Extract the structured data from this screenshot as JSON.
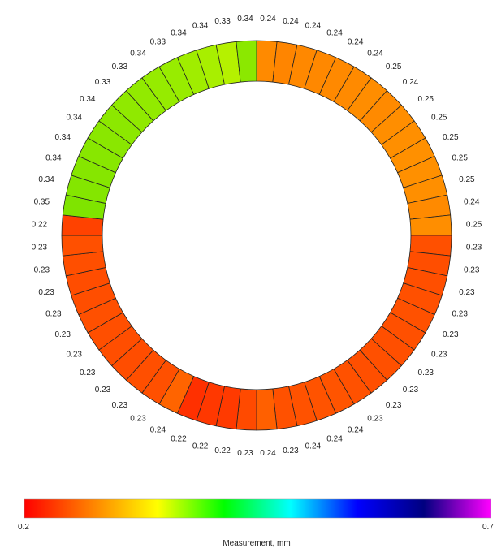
{
  "chart_data": {
    "type": "ring",
    "title": "",
    "start": "top",
    "direction": "clockwise",
    "values": [
      0.24,
      0.24,
      0.24,
      0.24,
      0.24,
      0.24,
      0.25,
      0.24,
      0.25,
      0.25,
      0.25,
      0.25,
      0.25,
      0.24,
      0.25,
      0.23,
      0.23,
      0.23,
      0.23,
      0.23,
      0.23,
      0.23,
      0.23,
      0.23,
      0.23,
      0.24,
      0.24,
      0.24,
      0.23,
      0.24,
      0.23,
      0.22,
      0.22,
      0.22,
      0.24,
      0.23,
      0.23,
      0.23,
      0.23,
      0.23,
      0.23,
      0.23,
      0.23,
      0.23,
      0.23,
      0.22,
      0.35,
      0.34,
      0.34,
      0.34,
      0.34,
      0.34,
      0.33,
      0.33,
      0.34,
      0.33,
      0.34,
      0.34,
      0.33,
      0.34
    ],
    "value_labels": [
      "0.24",
      "0.24",
      "0.24",
      "0.24",
      "0.24",
      "0.24",
      "0.25",
      "0.24",
      "0.25",
      "0.25",
      "0.25",
      "0.25",
      "0.25",
      "0.24",
      "0.25",
      "0.23",
      "0.23",
      "0.23",
      "0.23",
      "0.23",
      "0.23",
      "0.23",
      "0.23",
      "0.23",
      "0.23",
      "0.24",
      "0.24",
      "0.24",
      "0.23",
      "0.24",
      "0.23",
      "0.22",
      "0.22",
      "0.22",
      "0.24",
      "0.23",
      "0.23",
      "0.23",
      "0.23",
      "0.23",
      "0.23",
      "0.23",
      "0.23",
      "0.23",
      "0.23",
      "0.22",
      "0.35",
      "0.34",
      "0.34",
      "0.34",
      "0.34",
      "0.34",
      "0.33",
      "0.33",
      "0.34",
      "0.33",
      "0.34",
      "0.34",
      "0.33",
      "0.34"
    ],
    "segment_colors": [
      "#ff8a00",
      "#ff8500",
      "#ff8800",
      "#ff8800",
      "#ff8900",
      "#ff8a00",
      "#ff8d00",
      "#ff8a00",
      "#ff8e00",
      "#ff8f00",
      "#ff9000",
      "#ff9000",
      "#ff8f00",
      "#ff8a00",
      "#ff8e00",
      "#ff5000",
      "#ff4e00",
      "#ff4f00",
      "#ff5000",
      "#ff5100",
      "#ff5000",
      "#ff4f00",
      "#ff5000",
      "#ff4f00",
      "#ff5100",
      "#ff5400",
      "#ff5300",
      "#ff5200",
      "#ff5100",
      "#ff6000",
      "#ff4a00",
      "#ff3a00",
      "#ff3800",
      "#ff3000",
      "#ff6400",
      "#ff5000",
      "#ff4f00",
      "#ff4d00",
      "#ff4e00",
      "#ff4f00",
      "#ff5000",
      "#ff4e00",
      "#ff4d00",
      "#ff4f00",
      "#ff5000",
      "#ff4200",
      "#7fe400",
      "#84e600",
      "#86e600",
      "#88e700",
      "#8ae700",
      "#8ce800",
      "#90e900",
      "#92ea00",
      "#96eb00",
      "#98ec00",
      "#a0ed00",
      "#a8ef00",
      "#b5f100",
      "#8be800"
    ],
    "colorbar": {
      "min_label": "0.2",
      "max_label": "0.7",
      "label": "Measurement, mm",
      "stops": [
        "#ff0000",
        "#ff8000",
        "#ffff00",
        "#00ff00",
        "#00ffff",
        "#0000ff",
        "#000080",
        "#ff00ff"
      ]
    }
  }
}
